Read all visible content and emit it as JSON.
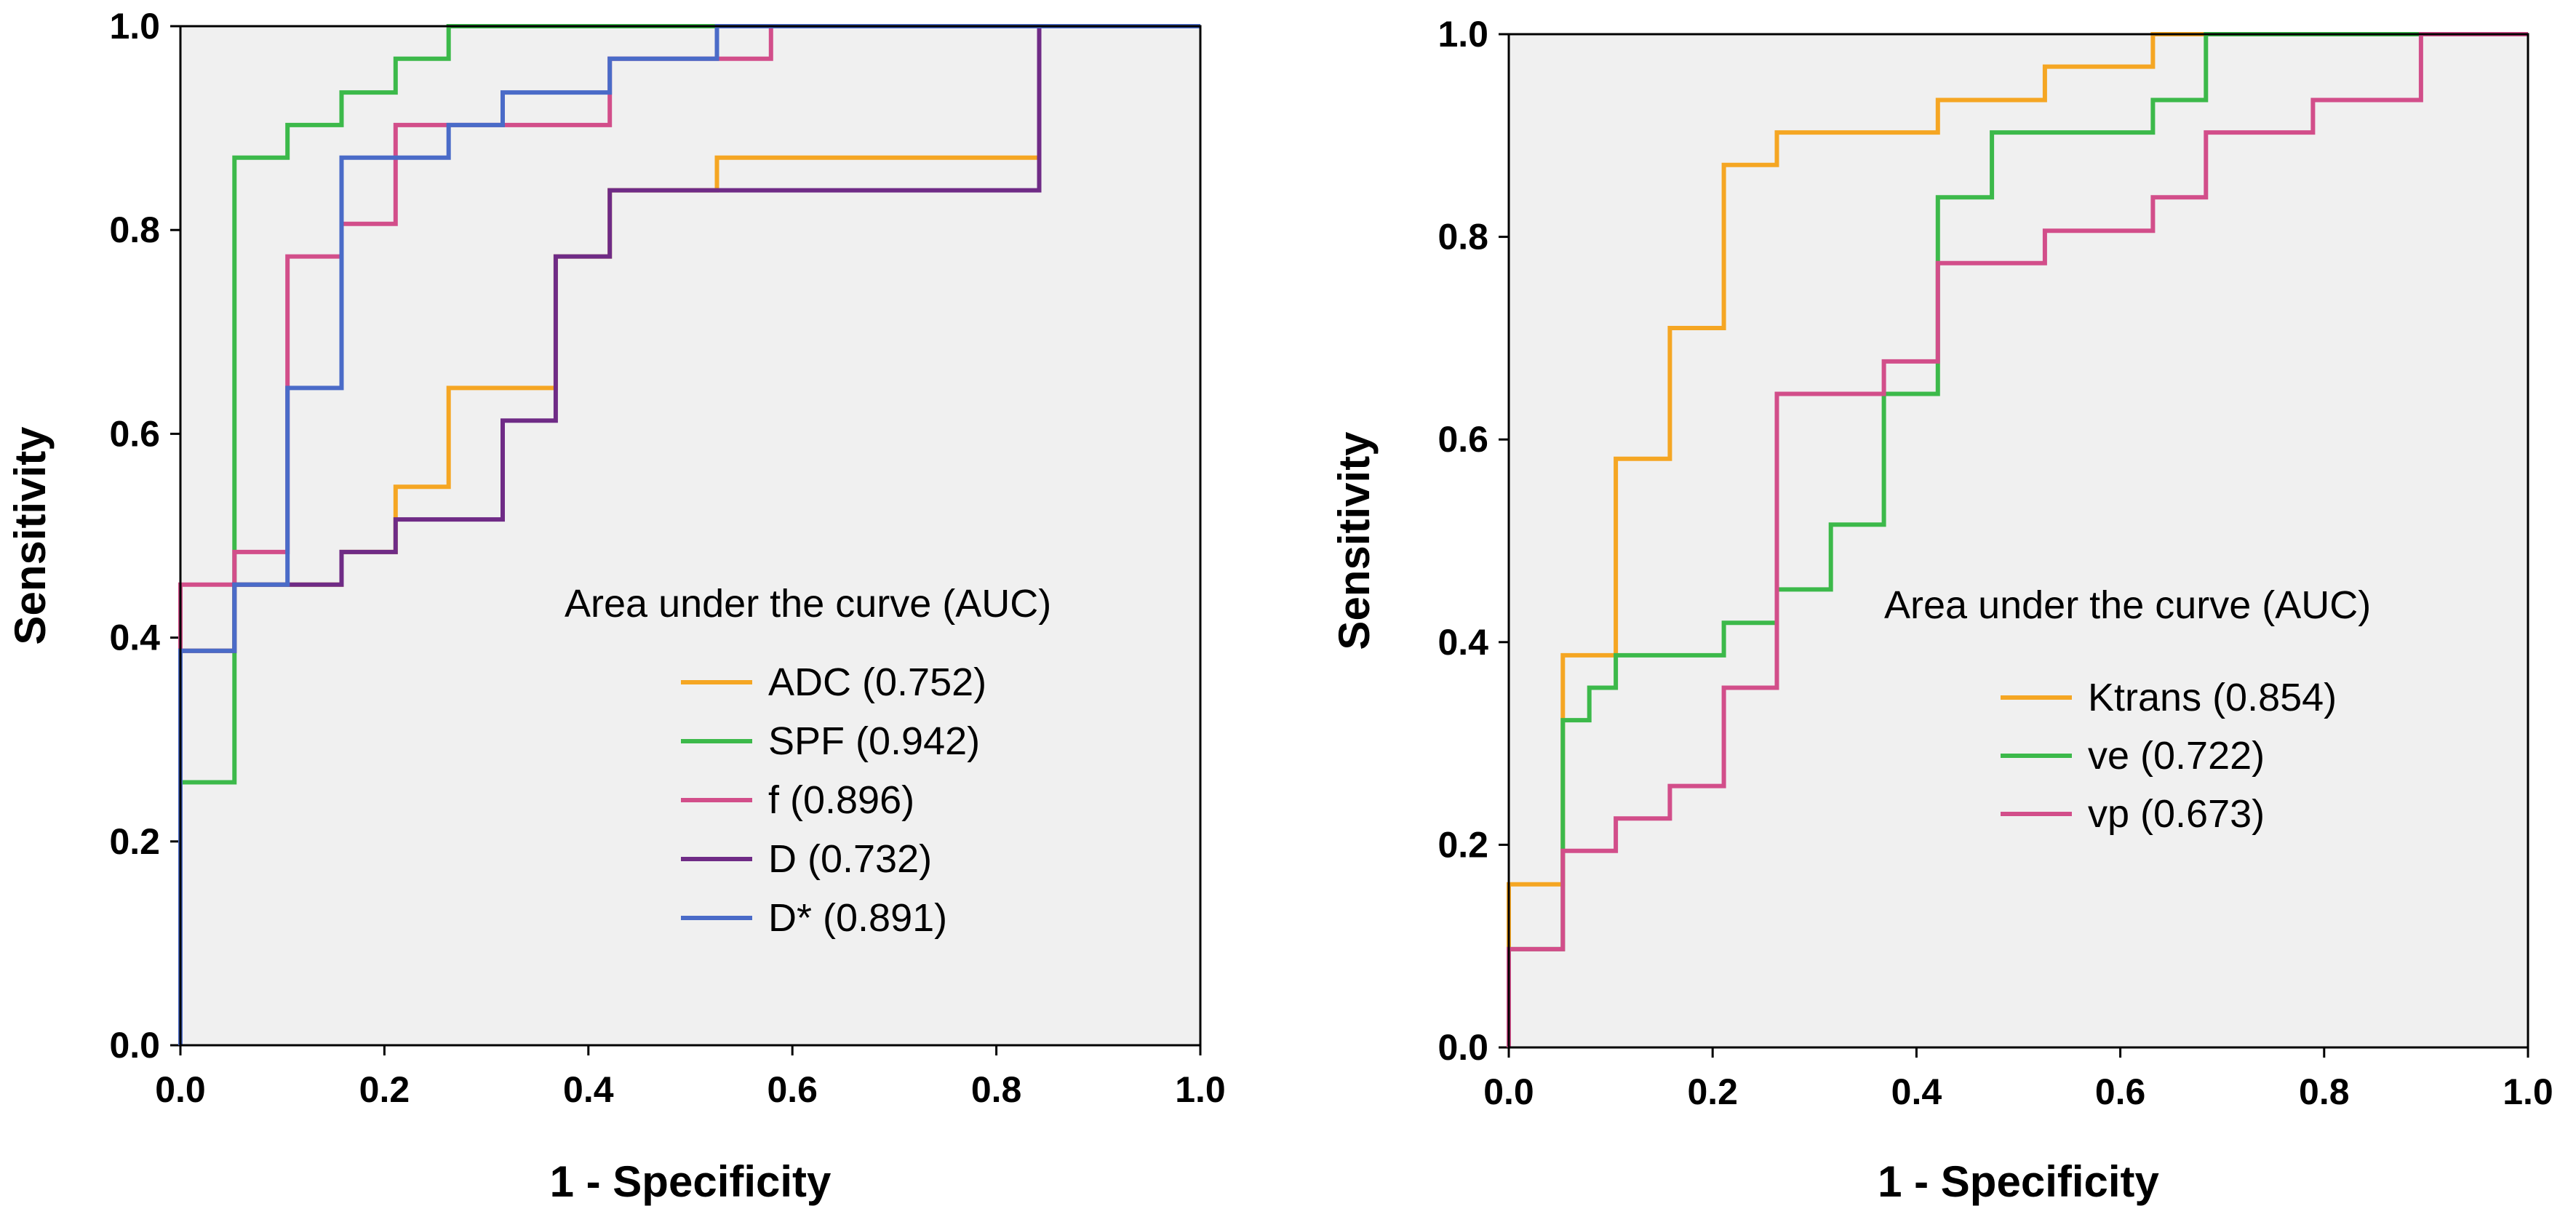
{
  "figure": {
    "legend_title": "Area under the curve (AUC)",
    "xlabel": "1 - Specificity",
    "ylabel": "Sensitivity"
  },
  "chart_data": [
    {
      "type": "line",
      "title": "",
      "xlabel": "1 - Specificity",
      "ylabel": "Sensitivity",
      "xlim": [
        0,
        1
      ],
      "ylim": [
        0,
        1
      ],
      "xticks": [
        "0.0",
        "0.2",
        "0.4",
        "0.6",
        "0.8",
        "1.0"
      ],
      "yticks": [
        "0.0",
        "0.2",
        "0.4",
        "0.6",
        "0.8",
        "1.0"
      ],
      "grid": false,
      "legend_title": "Area under the curve (AUC)",
      "legend_position": "lower-right",
      "series": [
        {
          "name": "ADC (0.752)",
          "color": "#f5a623",
          "points": [
            [
              0,
              0
            ],
            [
              0,
              0.387
            ],
            [
              0.053,
              0.387
            ],
            [
              0.053,
              0.452
            ],
            [
              0.158,
              0.452
            ],
            [
              0.158,
              0.484
            ],
            [
              0.211,
              0.484
            ],
            [
              0.211,
              0.548
            ],
            [
              0.263,
              0.548
            ],
            [
              0.263,
              0.645
            ],
            [
              0.368,
              0.645
            ],
            [
              0.368,
              0.774
            ],
            [
              0.421,
              0.774
            ],
            [
              0.421,
              0.839
            ],
            [
              0.526,
              0.839
            ],
            [
              0.526,
              0.871
            ],
            [
              0.842,
              0.871
            ],
            [
              0.842,
              1
            ],
            [
              1,
              1
            ]
          ]
        },
        {
          "name": "SPF (0.942)",
          "color": "#3cb94a",
          "points": [
            [
              0,
              0
            ],
            [
              0,
              0.258
            ],
            [
              0.053,
              0.258
            ],
            [
              0.053,
              0.871
            ],
            [
              0.105,
              0.871
            ],
            [
              0.105,
              0.903
            ],
            [
              0.158,
              0.903
            ],
            [
              0.158,
              0.935
            ],
            [
              0.211,
              0.935
            ],
            [
              0.211,
              0.968
            ],
            [
              0.263,
              0.968
            ],
            [
              0.263,
              1
            ],
            [
              1,
              1
            ]
          ]
        },
        {
          "name": "f (0.896)",
          "color": "#d24e8a",
          "points": [
            [
              0,
              0
            ],
            [
              0,
              0.452
            ],
            [
              0.053,
              0.452
            ],
            [
              0.053,
              0.484
            ],
            [
              0.105,
              0.484
            ],
            [
              0.105,
              0.774
            ],
            [
              0.158,
              0.774
            ],
            [
              0.158,
              0.806
            ],
            [
              0.211,
              0.806
            ],
            [
              0.211,
              0.903
            ],
            [
              0.421,
              0.903
            ],
            [
              0.421,
              0.968
            ],
            [
              0.526,
              0.968
            ],
            [
              0.579,
              0.968
            ],
            [
              0.579,
              1
            ],
            [
              1,
              1
            ]
          ]
        },
        {
          "name": "D (0.732)",
          "color": "#6f2b86",
          "points": [
            [
              0,
              0
            ],
            [
              0,
              0.387
            ],
            [
              0.053,
              0.387
            ],
            [
              0.053,
              0.452
            ],
            [
              0.158,
              0.452
            ],
            [
              0.158,
              0.484
            ],
            [
              0.211,
              0.484
            ],
            [
              0.211,
              0.516
            ],
            [
              0.316,
              0.516
            ],
            [
              0.316,
              0.613
            ],
            [
              0.368,
              0.613
            ],
            [
              0.368,
              0.774
            ],
            [
              0.421,
              0.774
            ],
            [
              0.421,
              0.839
            ],
            [
              0.842,
              0.839
            ],
            [
              0.842,
              1
            ],
            [
              1,
              1
            ]
          ]
        },
        {
          "name": "D* (0.891)",
          "color": "#4a6bc8",
          "points": [
            [
              0,
              0
            ],
            [
              0,
              0.387
            ],
            [
              0.053,
              0.387
            ],
            [
              0.053,
              0.452
            ],
            [
              0.105,
              0.452
            ],
            [
              0.105,
              0.645
            ],
            [
              0.158,
              0.645
            ],
            [
              0.158,
              0.871
            ],
            [
              0.263,
              0.871
            ],
            [
              0.263,
              0.903
            ],
            [
              0.316,
              0.903
            ],
            [
              0.316,
              0.935
            ],
            [
              0.421,
              0.935
            ],
            [
              0.421,
              0.968
            ],
            [
              0.526,
              0.968
            ],
            [
              0.526,
              1
            ],
            [
              1,
              1
            ]
          ]
        }
      ]
    },
    {
      "type": "line",
      "title": "",
      "xlabel": "1 - Specificity",
      "ylabel": "Sensitivity",
      "xlim": [
        0,
        1
      ],
      "ylim": [
        0,
        1
      ],
      "xticks": [
        "0.0",
        "0.2",
        "0.4",
        "0.6",
        "0.8",
        "1.0"
      ],
      "yticks": [
        "0.0",
        "0.2",
        "0.4",
        "0.6",
        "0.8",
        "1.0"
      ],
      "grid": false,
      "legend_title": "Area under the curve (AUC)",
      "legend_position": "lower-right",
      "series": [
        {
          "name": "Ktrans (0.854)",
          "color": "#f5a623",
          "points": [
            [
              0,
              0
            ],
            [
              0,
              0.161
            ],
            [
              0.053,
              0.161
            ],
            [
              0.053,
              0.387
            ],
            [
              0.105,
              0.387
            ],
            [
              0.105,
              0.581
            ],
            [
              0.158,
              0.581
            ],
            [
              0.158,
              0.71
            ],
            [
              0.211,
              0.71
            ],
            [
              0.211,
              0.871
            ],
            [
              0.263,
              0.871
            ],
            [
              0.263,
              0.903
            ],
            [
              0.421,
              0.903
            ],
            [
              0.421,
              0.935
            ],
            [
              0.526,
              0.935
            ],
            [
              0.526,
              0.968
            ],
            [
              0.632,
              0.968
            ],
            [
              0.632,
              1
            ],
            [
              1,
              1
            ]
          ]
        },
        {
          "name": "ve (0.722)",
          "color": "#3cb94a",
          "points": [
            [
              0,
              0
            ],
            [
              0,
              0.097
            ],
            [
              0.053,
              0.097
            ],
            [
              0.053,
              0.323
            ],
            [
              0.079,
              0.323
            ],
            [
              0.079,
              0.355
            ],
            [
              0.105,
              0.355
            ],
            [
              0.105,
              0.387
            ],
            [
              0.211,
              0.387
            ],
            [
              0.211,
              0.419
            ],
            [
              0.263,
              0.419
            ],
            [
              0.263,
              0.452
            ],
            [
              0.316,
              0.452
            ],
            [
              0.316,
              0.516
            ],
            [
              0.368,
              0.516
            ],
            [
              0.368,
              0.645
            ],
            [
              0.421,
              0.645
            ],
            [
              0.421,
              0.839
            ],
            [
              0.474,
              0.839
            ],
            [
              0.474,
              0.903
            ],
            [
              0.632,
              0.903
            ],
            [
              0.632,
              0.935
            ],
            [
              0.684,
              0.935
            ],
            [
              0.684,
              1
            ],
            [
              1,
              1
            ]
          ]
        },
        {
          "name": "vp (0.673)",
          "color": "#d24e8a",
          "points": [
            [
              0,
              0
            ],
            [
              0,
              0.097
            ],
            [
              0.053,
              0.097
            ],
            [
              0.053,
              0.194
            ],
            [
              0.105,
              0.194
            ],
            [
              0.105,
              0.226
            ],
            [
              0.158,
              0.226
            ],
            [
              0.158,
              0.258
            ],
            [
              0.211,
              0.258
            ],
            [
              0.211,
              0.355
            ],
            [
              0.263,
              0.355
            ],
            [
              0.263,
              0.645
            ],
            [
              0.368,
              0.645
            ],
            [
              0.368,
              0.677
            ],
            [
              0.421,
              0.677
            ],
            [
              0.421,
              0.774
            ],
            [
              0.526,
              0.774
            ],
            [
              0.526,
              0.806
            ],
            [
              0.632,
              0.806
            ],
            [
              0.632,
              0.839
            ],
            [
              0.684,
              0.839
            ],
            [
              0.684,
              0.903
            ],
            [
              0.789,
              0.903
            ],
            [
              0.789,
              0.935
            ],
            [
              0.895,
              0.935
            ],
            [
              0.895,
              1
            ],
            [
              1,
              1
            ]
          ]
        }
      ]
    }
  ]
}
